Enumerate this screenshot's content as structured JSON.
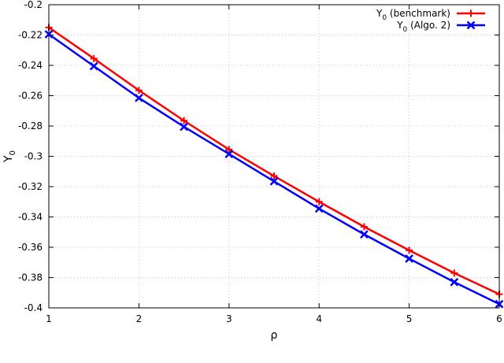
{
  "chart_data": {
    "type": "line",
    "xlabel": "ρ",
    "ylabel": "Y",
    "ylabel_sub": "0",
    "xlim": [
      1,
      6
    ],
    "ylim": [
      -0.4,
      -0.2
    ],
    "xticks": [
      "1",
      "2",
      "3",
      "4",
      "5",
      "6"
    ],
    "yticks": [
      "-0.2",
      "-0.22",
      "-0.24",
      "-0.26",
      "-0.28",
      "-0.3",
      "-0.32",
      "-0.34",
      "-0.36",
      "-0.38",
      "-0.4"
    ],
    "grid": true,
    "legend_position": "top-right",
    "x": [
      1,
      1.5,
      2,
      2.5,
      3,
      3.5,
      4,
      4.5,
      5,
      5.5,
      6
    ],
    "series": [
      {
        "name": "Y",
        "name_sub": "0",
        "name_suffix": " (benchmark)",
        "color": "#ff0000",
        "marker": "plus",
        "values": [
          -0.215,
          -0.2355,
          -0.2565,
          -0.2765,
          -0.2955,
          -0.313,
          -0.33,
          -0.3465,
          -0.362,
          -0.377,
          -0.391
        ]
      },
      {
        "name": "Y",
        "name_sub": "0",
        "name_suffix": " (Algo. 2)",
        "color": "#0000ff",
        "marker": "x",
        "values": [
          -0.2195,
          -0.2405,
          -0.2615,
          -0.2805,
          -0.2985,
          -0.3165,
          -0.3345,
          -0.3515,
          -0.3675,
          -0.383,
          -0.3975
        ]
      }
    ]
  }
}
